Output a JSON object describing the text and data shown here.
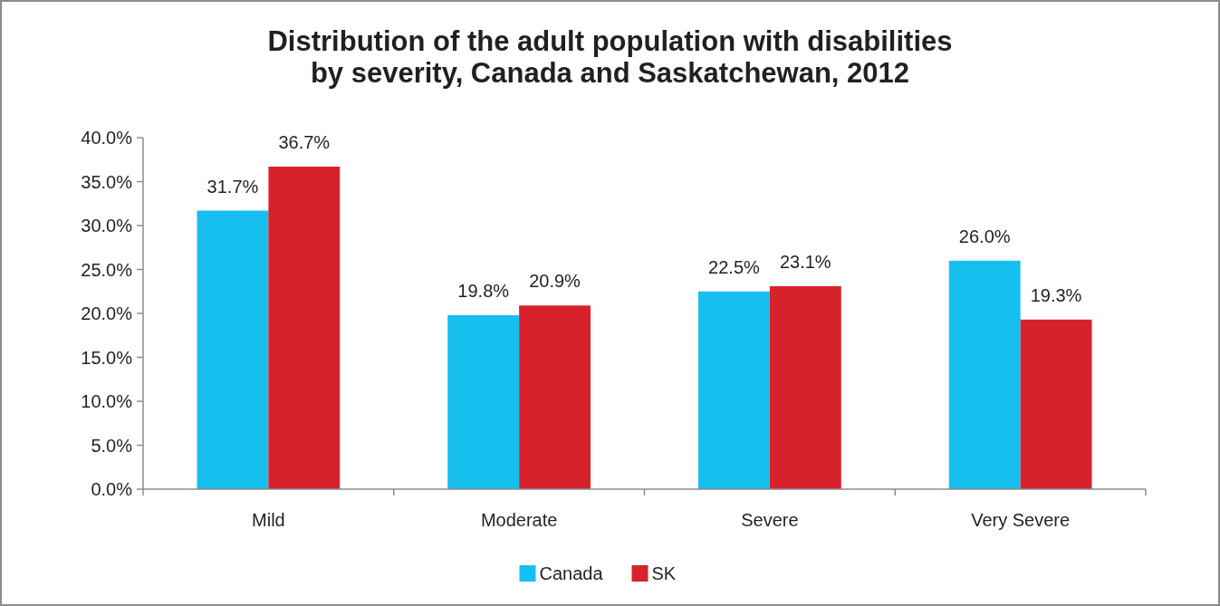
{
  "chart_data": {
    "type": "bar",
    "title": "Distribution of the adult population with disabilities\nby severity, Canada and Saskatchewan, 2012",
    "categories": [
      "Mild",
      "Moderate",
      "Severe",
      "Very Severe"
    ],
    "series": [
      {
        "name": "Canada",
        "color": "#17bfef",
        "values": [
          31.7,
          19.8,
          22.5,
          26.0
        ],
        "value_labels": [
          "31.7%",
          "19.8%",
          "22.5%",
          "26.0%"
        ]
      },
      {
        "name": "SK",
        "color": "#d8222b",
        "values": [
          36.7,
          20.9,
          23.1,
          19.3
        ],
        "value_labels": [
          "36.7%",
          "20.9%",
          "23.1%",
          "19.3%"
        ]
      }
    ],
    "ylim": [
      0,
      40
    ],
    "yticks": [
      {
        "value": 0,
        "label": "0.0%"
      },
      {
        "value": 5,
        "label": "5.0%"
      },
      {
        "value": 10,
        "label": "10.0%"
      },
      {
        "value": 15,
        "label": "15.0%"
      },
      {
        "value": 20,
        "label": "20.0%"
      },
      {
        "value": 25,
        "label": "25.0%"
      },
      {
        "value": 30,
        "label": "30.0%"
      },
      {
        "value": 35,
        "label": "35.0%"
      },
      {
        "value": 40,
        "label": "40.0%"
      }
    ],
    "grid": false,
    "legend": "bottom"
  }
}
